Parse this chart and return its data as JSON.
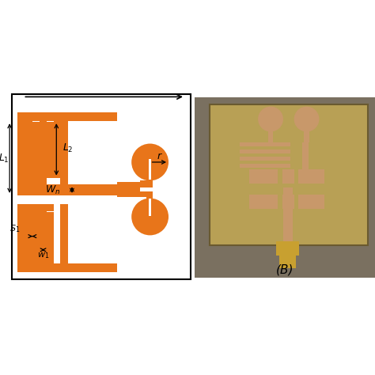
{
  "orange": "#E8751A",
  "bg": "#ffffff",
  "border_color": "#000000",
  "fig_width": 4.74,
  "fig_height": 4.74,
  "dpi": 100,
  "photo_bg": "#9a8a50",
  "photo_board": "#b8a055",
  "photo_copper": "#c8986a",
  "photo_copper_light": "#d4aa78"
}
